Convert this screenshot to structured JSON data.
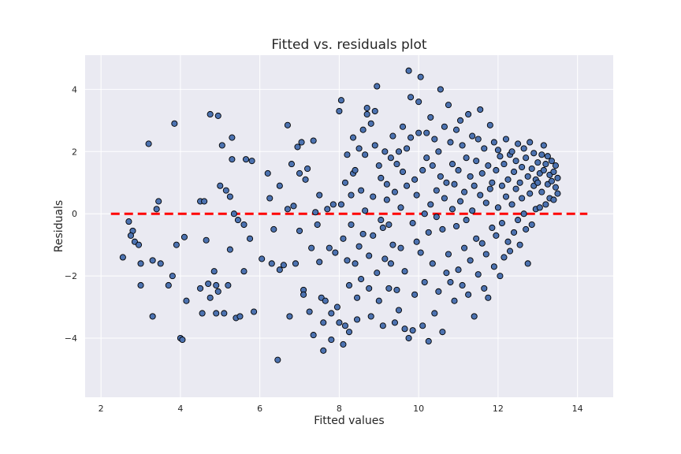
{
  "chart_data": {
    "type": "scatter",
    "title": "Fitted vs. residuals plot",
    "xlabel": "Fitted values",
    "ylabel": "Residuals",
    "xlim": [
      1.6,
      14.9
    ],
    "ylim": [
      -5.9,
      5.1
    ],
    "xticks": [
      2,
      4,
      6,
      8,
      10,
      12,
      14
    ],
    "yticks": [
      -4,
      -2,
      0,
      2,
      4
    ],
    "grid": true,
    "background_color": "#eaeaf2",
    "grid_color": "#ffffff",
    "point_color": "#4c72b0",
    "point_edge_color": "#000000",
    "reference_line": {
      "y": 0,
      "x_range": [
        2.25,
        14.25
      ],
      "style": "dashed",
      "color": "#ff0000"
    },
    "points": [
      [
        4.15,
        -2.8
      ],
      [
        2.55,
        -1.4
      ],
      [
        2.7,
        -0.25
      ],
      [
        2.8,
        -0.55
      ],
      [
        2.85,
        -0.9
      ],
      [
        2.75,
        -0.7
      ],
      [
        2.95,
        -1.0
      ],
      [
        3.0,
        -1.6
      ],
      [
        3.0,
        -2.3
      ],
      [
        3.2,
        2.25
      ],
      [
        3.3,
        -1.5
      ],
      [
        3.3,
        -3.3
      ],
      [
        3.4,
        0.15
      ],
      [
        3.45,
        0.4
      ],
      [
        3.5,
        -1.6
      ],
      [
        3.7,
        -2.3
      ],
      [
        3.8,
        -2.0
      ],
      [
        3.85,
        2.9
      ],
      [
        3.9,
        -1.0
      ],
      [
        4.0,
        -4.0
      ],
      [
        4.05,
        -4.05
      ],
      [
        4.1,
        -0.75
      ],
      [
        4.5,
        0.4
      ],
      [
        4.5,
        -2.4
      ],
      [
        4.55,
        -3.2
      ],
      [
        4.6,
        0.4
      ],
      [
        4.65,
        -0.85
      ],
      [
        4.7,
        -2.25
      ],
      [
        4.75,
        -2.7
      ],
      [
        4.75,
        3.2
      ],
      [
        4.85,
        -1.85
      ],
      [
        4.9,
        -2.3
      ],
      [
        4.9,
        -3.2
      ],
      [
        4.95,
        3.15
      ],
      [
        4.95,
        -2.5
      ],
      [
        5.0,
        0.9
      ],
      [
        5.05,
        2.2
      ],
      [
        5.1,
        -3.2
      ],
      [
        5.15,
        0.75
      ],
      [
        5.2,
        -2.3
      ],
      [
        5.25,
        -1.15
      ],
      [
        5.25,
        0.55
      ],
      [
        5.3,
        2.45
      ],
      [
        5.3,
        1.75
      ],
      [
        5.35,
        0.0
      ],
      [
        5.4,
        -3.35
      ],
      [
        5.5,
        -3.3
      ],
      [
        5.6,
        -1.85
      ],
      [
        5.65,
        1.75
      ],
      [
        5.75,
        -0.8
      ],
      [
        5.8,
        1.7
      ],
      [
        5.85,
        -3.15
      ],
      [
        5.6,
        -0.35
      ],
      [
        5.45,
        -0.2
      ],
      [
        6.05,
        -1.45
      ],
      [
        6.2,
        1.3
      ],
      [
        6.25,
        0.5
      ],
      [
        6.3,
        -1.6
      ],
      [
        6.35,
        -0.5
      ],
      [
        6.45,
        -4.7
      ],
      [
        6.5,
        0.9
      ],
      [
        6.5,
        -1.8
      ],
      [
        6.6,
        -1.65
      ],
      [
        6.7,
        0.15
      ],
      [
        6.7,
        2.85
      ],
      [
        6.75,
        -3.3
      ],
      [
        6.8,
        1.6
      ],
      [
        6.85,
        0.25
      ],
      [
        6.9,
        -1.6
      ],
      [
        6.95,
        2.15
      ],
      [
        7.0,
        -0.55
      ],
      [
        7.0,
        1.3
      ],
      [
        7.05,
        2.3
      ],
      [
        7.1,
        -2.45
      ],
      [
        7.1,
        -2.6
      ],
      [
        7.15,
        1.1
      ],
      [
        7.2,
        1.45
      ],
      [
        7.25,
        -3.15
      ],
      [
        7.3,
        -1.1
      ],
      [
        7.35,
        -3.9
      ],
      [
        7.35,
        2.35
      ],
      [
        7.4,
        0.05
      ],
      [
        7.45,
        -0.35
      ],
      [
        7.5,
        0.6
      ],
      [
        7.5,
        -1.55
      ],
      [
        7.55,
        -2.7
      ],
      [
        7.6,
        -4.4
      ],
      [
        7.6,
        -3.5
      ],
      [
        7.65,
        -2.8
      ],
      [
        7.7,
        0.15
      ],
      [
        7.75,
        -1.1
      ],
      [
        7.8,
        -3.2
      ],
      [
        7.8,
        -4.05
      ],
      [
        7.85,
        0.3
      ],
      [
        7.9,
        -1.25
      ],
      [
        7.95,
        -3.0
      ],
      [
        8.0,
        -3.5
      ],
      [
        8.0,
        3.3
      ],
      [
        8.05,
        3.65
      ],
      [
        8.05,
        0.3
      ],
      [
        8.1,
        -0.8
      ],
      [
        8.1,
        -4.2
      ],
      [
        8.15,
        1.0
      ],
      [
        8.15,
        -3.6
      ],
      [
        8.2,
        1.9
      ],
      [
        8.2,
        -1.5
      ],
      [
        8.25,
        -2.3
      ],
      [
        8.25,
        -3.8
      ],
      [
        8.3,
        0.6
      ],
      [
        8.3,
        -0.35
      ],
      [
        8.35,
        2.45
      ],
      [
        8.35,
        1.3
      ],
      [
        8.4,
        1.4
      ],
      [
        8.4,
        -1.6
      ],
      [
        8.45,
        -2.7
      ],
      [
        8.45,
        -3.4
      ],
      [
        8.5,
        2.1
      ],
      [
        8.5,
        -1.05
      ],
      [
        8.55,
        0.75
      ],
      [
        8.55,
        -2.1
      ],
      [
        8.6,
        2.7
      ],
      [
        8.6,
        -0.65
      ],
      [
        8.65,
        1.9
      ],
      [
        8.65,
        0.1
      ],
      [
        8.7,
        3.2
      ],
      [
        8.7,
        3.4
      ],
      [
        8.75,
        -1.35
      ],
      [
        8.75,
        -2.4
      ],
      [
        8.8,
        2.9
      ],
      [
        8.8,
        -3.3
      ],
      [
        8.85,
        0.55
      ],
      [
        8.85,
        -0.7
      ],
      [
        8.9,
        3.3
      ],
      [
        8.9,
        2.2
      ],
      [
        8.95,
        4.1
      ],
      [
        8.95,
        -1.9
      ],
      [
        9.0,
        1.55
      ],
      [
        9.0,
        -2.8
      ],
      [
        9.05,
        1.15
      ],
      [
        9.05,
        -0.2
      ],
      [
        9.1,
        -3.6
      ],
      [
        9.1,
        -0.45
      ],
      [
        9.15,
        2.0
      ],
      [
        9.15,
        -1.45
      ],
      [
        9.2,
        0.45
      ],
      [
        9.2,
        0.95
      ],
      [
        9.25,
        -0.35
      ],
      [
        9.25,
        -2.4
      ],
      [
        9.3,
        1.8
      ],
      [
        9.3,
        -1.6
      ],
      [
        9.35,
        2.5
      ],
      [
        9.35,
        -1.0
      ],
      [
        9.4,
        -3.5
      ],
      [
        9.4,
        0.7
      ],
      [
        9.45,
        1.6
      ],
      [
        9.45,
        -2.45
      ],
      [
        9.5,
        -3.1
      ],
      [
        9.5,
        2.0
      ],
      [
        9.55,
        0.2
      ],
      [
        9.55,
        -1.1
      ],
      [
        9.6,
        2.8
      ],
      [
        9.6,
        1.35
      ],
      [
        9.65,
        -3.7
      ],
      [
        9.65,
        -1.85
      ],
      [
        9.7,
        2.1
      ],
      [
        9.7,
        0.9
      ],
      [
        9.75,
        4.6
      ],
      [
        9.75,
        -4.0
      ],
      [
        9.8,
        3.75
      ],
      [
        9.8,
        2.45
      ],
      [
        9.85,
        -0.3
      ],
      [
        9.85,
        -3.75
      ],
      [
        9.9,
        1.1
      ],
      [
        9.9,
        -2.6
      ],
      [
        9.95,
        0.6
      ],
      [
        9.95,
        -0.9
      ],
      [
        10.0,
        3.6
      ],
      [
        10.0,
        2.6
      ],
      [
        10.05,
        4.4
      ],
      [
        10.05,
        -1.25
      ],
      [
        10.1,
        1.4
      ],
      [
        10.1,
        -3.6
      ],
      [
        10.15,
        0.0
      ],
      [
        10.15,
        -2.2
      ],
      [
        10.2,
        2.6
      ],
      [
        10.2,
        1.8
      ],
      [
        10.25,
        -0.6
      ],
      [
        10.25,
        -4.1
      ],
      [
        10.3,
        3.1
      ],
      [
        10.3,
        0.3
      ],
      [
        10.35,
        1.55
      ],
      [
        10.35,
        -1.6
      ],
      [
        10.4,
        2.4
      ],
      [
        10.4,
        -3.2
      ],
      [
        10.45,
        0.75
      ],
      [
        10.45,
        -0.1
      ],
      [
        10.5,
        2.0
      ],
      [
        10.5,
        -2.5
      ],
      [
        10.55,
        4.0
      ],
      [
        10.55,
        1.2
      ],
      [
        10.6,
        -0.5
      ],
      [
        10.6,
        -3.8
      ],
      [
        10.65,
        2.8
      ],
      [
        10.65,
        0.5
      ],
      [
        10.7,
        1.0
      ],
      [
        10.7,
        -1.9
      ],
      [
        10.75,
        3.5
      ],
      [
        10.75,
        -1.3
      ],
      [
        10.8,
        2.3
      ],
      [
        10.8,
        -2.2
      ],
      [
        10.85,
        1.6
      ],
      [
        10.85,
        0.15
      ],
      [
        10.9,
        0.95
      ],
      [
        10.9,
        -2.8
      ],
      [
        10.95,
        2.7
      ],
      [
        10.95,
        -0.4
      ],
      [
        11.0,
        1.4
      ],
      [
        11.0,
        -1.8
      ],
      [
        11.05,
        3.0
      ],
      [
        11.05,
        0.4
      ],
      [
        11.1,
        2.2
      ],
      [
        11.1,
        -2.3
      ],
      [
        11.15,
        0.7
      ],
      [
        11.15,
        -1.1
      ],
      [
        11.2,
        1.8
      ],
      [
        11.2,
        -0.2
      ],
      [
        11.25,
        3.2
      ],
      [
        11.25,
        -2.6
      ],
      [
        11.3,
        1.2
      ],
      [
        11.3,
        -1.5
      ],
      [
        11.35,
        2.5
      ],
      [
        11.35,
        0.1
      ],
      [
        11.4,
        0.9
      ],
      [
        11.4,
        -3.3
      ],
      [
        11.45,
        1.7
      ],
      [
        11.45,
        -0.8
      ],
      [
        11.5,
        2.4
      ],
      [
        11.5,
        -1.95
      ],
      [
        11.55,
        3.35
      ],
      [
        11.55,
        0.6
      ],
      [
        11.6,
        1.3
      ],
      [
        11.6,
        -0.95
      ],
      [
        11.65,
        2.1
      ],
      [
        11.65,
        -2.4
      ],
      [
        11.7,
        0.35
      ],
      [
        11.7,
        -1.3
      ],
      [
        11.75,
        1.55
      ],
      [
        11.75,
        -2.7
      ],
      [
        11.8,
        2.85
      ],
      [
        11.8,
        0.8
      ],
      [
        11.85,
        1.0
      ],
      [
        11.85,
        -0.45
      ],
      [
        11.9,
        2.3
      ],
      [
        11.9,
        -1.7
      ],
      [
        11.95,
        1.4
      ],
      [
        11.95,
        -0.7
      ],
      [
        12.0,
        2.05
      ],
      [
        12.0,
        0.2
      ],
      [
        12.05,
        1.85
      ],
      [
        12.05,
        -2.0
      ],
      [
        12.1,
        0.9
      ],
      [
        12.1,
        -0.3
      ],
      [
        12.15,
        1.6
      ],
      [
        12.15,
        -1.4
      ],
      [
        12.2,
        2.4
      ],
      [
        12.2,
        0.55
      ],
      [
        12.25,
        1.1
      ],
      [
        12.25,
        -0.9
      ],
      [
        12.3,
        1.9
      ],
      [
        12.3,
        -1.2
      ],
      [
        12.35,
        0.3
      ],
      [
        12.35,
        2.0
      ],
      [
        12.4,
        1.35
      ],
      [
        12.4,
        -0.6
      ],
      [
        12.45,
        0.8
      ],
      [
        12.45,
        1.7
      ],
      [
        12.5,
        2.25
      ],
      [
        12.5,
        -0.2
      ],
      [
        12.55,
        1.0
      ],
      [
        12.55,
        -1.0
      ],
      [
        12.6,
        0.5
      ],
      [
        12.6,
        1.5
      ],
      [
        12.65,
        2.1
      ],
      [
        12.65,
        0.0
      ],
      [
        12.7,
        1.8
      ],
      [
        12.7,
        -0.5
      ],
      [
        12.75,
        1.2
      ],
      [
        12.75,
        -1.6
      ],
      [
        12.8,
        0.65
      ],
      [
        12.8,
        2.3
      ],
      [
        12.85,
        1.45
      ],
      [
        12.85,
        -0.35
      ],
      [
        12.9,
        0.9
      ],
      [
        12.9,
        1.95
      ],
      [
        12.95,
        1.1
      ],
      [
        12.95,
        0.15
      ],
      [
        13.0,
        1.65
      ],
      [
        13.0,
        1.0
      ],
      [
        13.05,
        1.3
      ],
      [
        13.05,
        0.2
      ],
      [
        13.1,
        1.9
      ],
      [
        13.1,
        0.7
      ],
      [
        13.15,
        1.4
      ],
      [
        13.15,
        2.2
      ],
      [
        13.2,
        0.3
      ],
      [
        13.2,
        1.6
      ],
      [
        13.25,
        0.95
      ],
      [
        13.25,
        1.85
      ],
      [
        13.3,
        1.25
      ],
      [
        13.3,
        0.5
      ],
      [
        13.35,
        1.05
      ],
      [
        13.35,
        1.7
      ],
      [
        13.4,
        0.45
      ],
      [
        13.4,
        1.35
      ],
      [
        13.45,
        0.85
      ],
      [
        13.45,
        1.55
      ],
      [
        13.5,
        0.65
      ],
      [
        13.5,
        1.15
      ]
    ]
  }
}
